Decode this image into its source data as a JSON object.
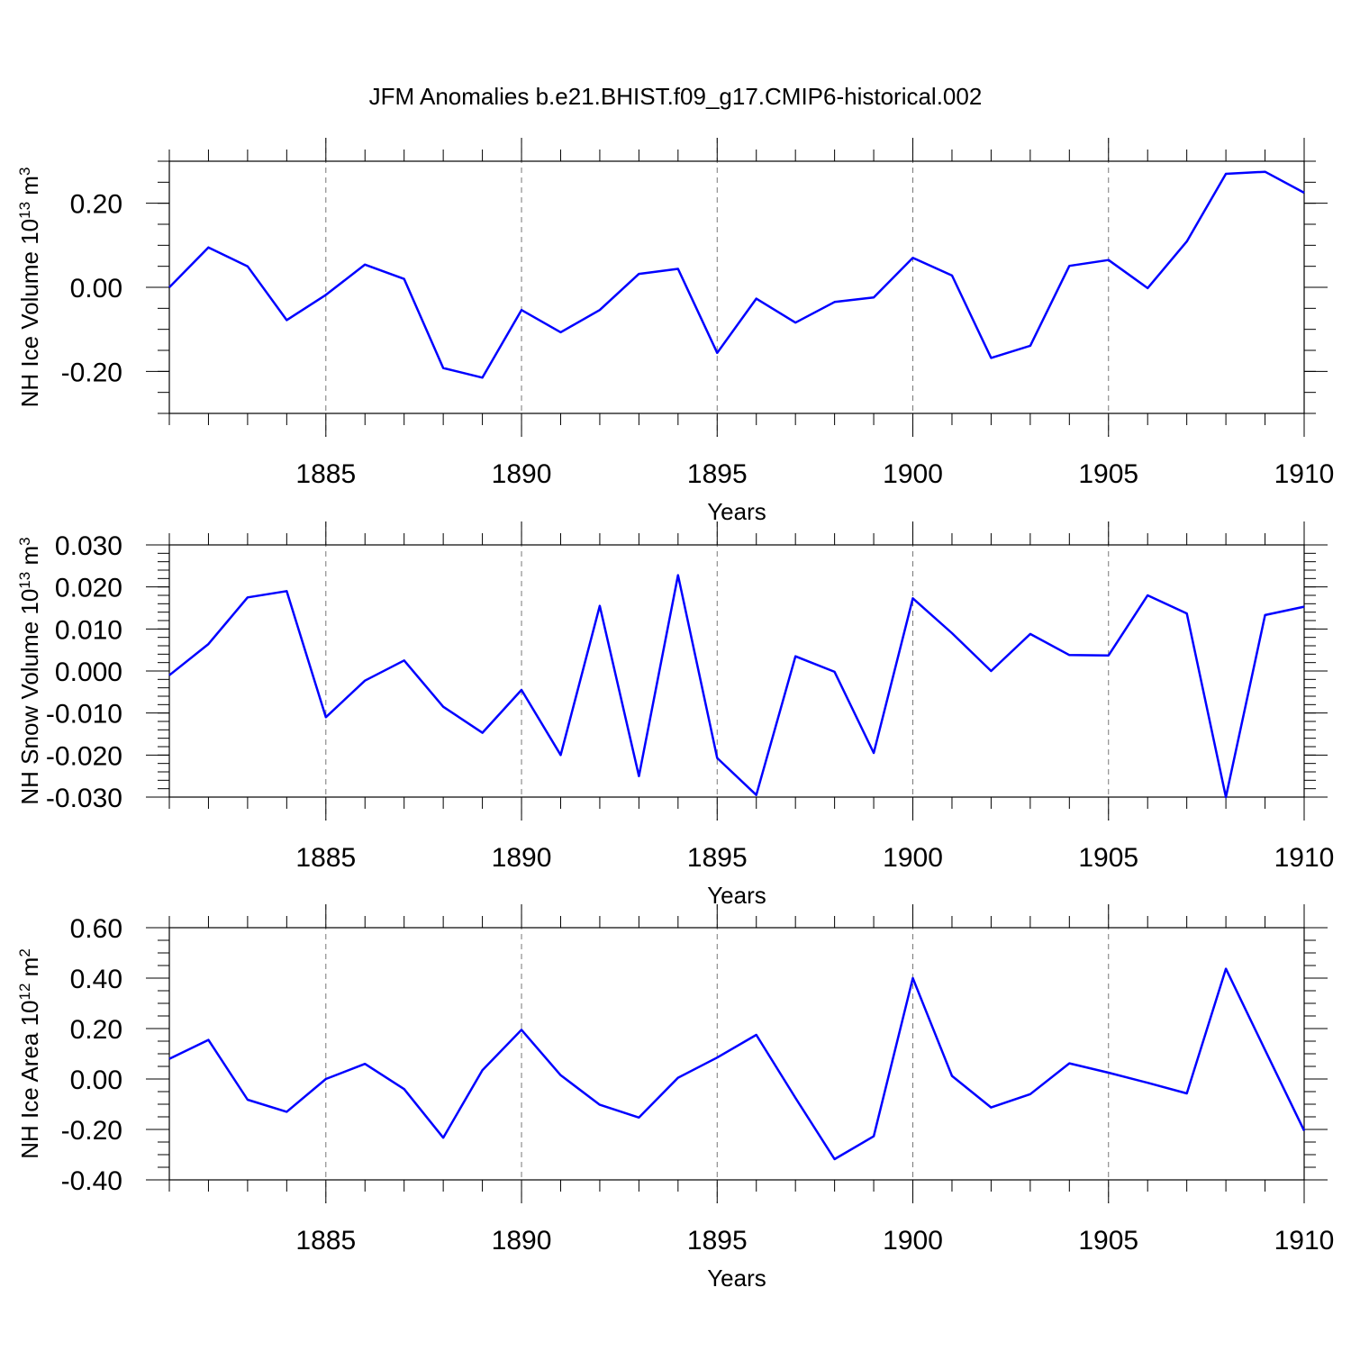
{
  "title": "JFM Anomalies b.e21.BHIST.f09_g17.CMIP6-historical.002",
  "series_color": "#0000ff",
  "chart_data": [
    {
      "type": "line",
      "id": "ice-volume",
      "ylabel": "NH Ice Volume",
      "ylabel_base": "10",
      "ylabel_exp": "13",
      "ylabel_unit": "m",
      "ylabel_unit_exp": "3",
      "xlabel": "Years",
      "xlim": [
        1881,
        1910
      ],
      "ylim": [
        -0.3,
        0.3
      ],
      "yticks": [
        -0.2,
        0.0,
        0.2
      ],
      "ytick_labels": [
        "-0.20",
        "0.00",
        "0.20"
      ],
      "yminor_step": 0.05,
      "xticks": [
        1885,
        1890,
        1895,
        1900,
        1905,
        1910
      ],
      "xtick_labels": [
        "1885",
        "1890",
        "1895",
        "1900",
        "1905",
        "1910"
      ],
      "grid_x": [
        1885,
        1890,
        1895,
        1900,
        1905
      ],
      "x": [
        1881,
        1882,
        1883,
        1884,
        1885,
        1886,
        1887,
        1888,
        1889,
        1890,
        1891,
        1892,
        1893,
        1894,
        1895,
        1896,
        1897,
        1898,
        1899,
        1900,
        1901,
        1902,
        1903,
        1904,
        1905,
        1906,
        1907,
        1908,
        1909,
        1910
      ],
      "values": [
        0.0,
        0.095,
        0.05,
        -0.078,
        -0.018,
        0.054,
        0.02,
        -0.192,
        -0.215,
        -0.054,
        -0.107,
        -0.054,
        0.032,
        0.044,
        -0.156,
        -0.027,
        -0.084,
        -0.035,
        -0.024,
        0.07,
        0.028,
        -0.168,
        -0.139,
        0.051,
        0.065,
        -0.002,
        0.109,
        0.27,
        0.275,
        0.225
      ]
    },
    {
      "type": "line",
      "id": "snow-volume",
      "ylabel": "NH Snow Volume",
      "ylabel_base": "10",
      "ylabel_exp": "13",
      "ylabel_unit": "m",
      "ylabel_unit_exp": "3",
      "xlabel": "Years",
      "xlim": [
        1881,
        1910
      ],
      "ylim": [
        -0.03,
        0.03
      ],
      "yticks": [
        -0.03,
        -0.02,
        -0.01,
        0.0,
        0.01,
        0.02,
        0.03
      ],
      "ytick_labels": [
        "-0.030",
        "-0.020",
        "-0.010",
        "0.000",
        "0.010",
        "0.020",
        "0.030"
      ],
      "yminor_step": 0.002,
      "xticks": [
        1885,
        1890,
        1895,
        1900,
        1905,
        1910
      ],
      "xtick_labels": [
        "1885",
        "1890",
        "1895",
        "1900",
        "1905",
        "1910"
      ],
      "grid_x": [
        1885,
        1890,
        1895,
        1900,
        1905
      ],
      "x": [
        1881,
        1882,
        1883,
        1884,
        1885,
        1886,
        1887,
        1888,
        1889,
        1890,
        1891,
        1892,
        1893,
        1894,
        1895,
        1896,
        1897,
        1898,
        1899,
        1900,
        1901,
        1902,
        1903,
        1904,
        1905,
        1906,
        1907,
        1908,
        1909,
        1910
      ],
      "values": [
        -0.001,
        0.0064,
        0.0175,
        0.019,
        -0.011,
        -0.0023,
        0.0025,
        -0.0085,
        -0.0147,
        -0.0045,
        -0.02,
        0.0155,
        -0.025,
        0.0228,
        -0.0207,
        -0.0295,
        0.0035,
        -0.0002,
        -0.0195,
        0.0173,
        0.009,
        0.0,
        0.0088,
        0.0038,
        0.0037,
        0.018,
        0.0137,
        -0.03,
        0.0133,
        0.0153
      ]
    },
    {
      "type": "line",
      "id": "ice-area",
      "ylabel": "NH Ice Area",
      "ylabel_base": "10",
      "ylabel_exp": "12",
      "ylabel_unit": "m",
      "ylabel_unit_exp": "2",
      "xlabel": "Years",
      "xlim": [
        1881,
        1910
      ],
      "ylim": [
        -0.4,
        0.6
      ],
      "yticks": [
        -0.4,
        -0.2,
        0.0,
        0.2,
        0.4,
        0.6
      ],
      "ytick_labels": [
        "-0.40",
        "-0.20",
        "0.00",
        "0.20",
        "0.40",
        "0.60"
      ],
      "yminor_step": 0.05,
      "xticks": [
        1885,
        1890,
        1895,
        1900,
        1905,
        1910
      ],
      "xtick_labels": [
        "1885",
        "1890",
        "1895",
        "1900",
        "1905",
        "1910"
      ],
      "grid_x": [
        1885,
        1890,
        1895,
        1900,
        1905
      ],
      "x": [
        1881,
        1882,
        1883,
        1884,
        1885,
        1886,
        1887,
        1888,
        1889,
        1890,
        1891,
        1892,
        1893,
        1894,
        1895,
        1896,
        1897,
        1898,
        1899,
        1900,
        1901,
        1902,
        1903,
        1904,
        1905,
        1906,
        1907,
        1908,
        1909,
        1910
      ],
      "values": [
        0.08,
        0.155,
        -0.082,
        -0.13,
        0.0,
        0.06,
        -0.04,
        -0.233,
        0.035,
        0.195,
        0.015,
        -0.102,
        -0.153,
        0.005,
        0.085,
        0.175,
        -0.075,
        -0.318,
        -0.227,
        0.4,
        0.012,
        -0.113,
        -0.06,
        0.062,
        0.025,
        -0.015,
        -0.057,
        0.437,
        0.115,
        -0.205
      ]
    }
  ]
}
